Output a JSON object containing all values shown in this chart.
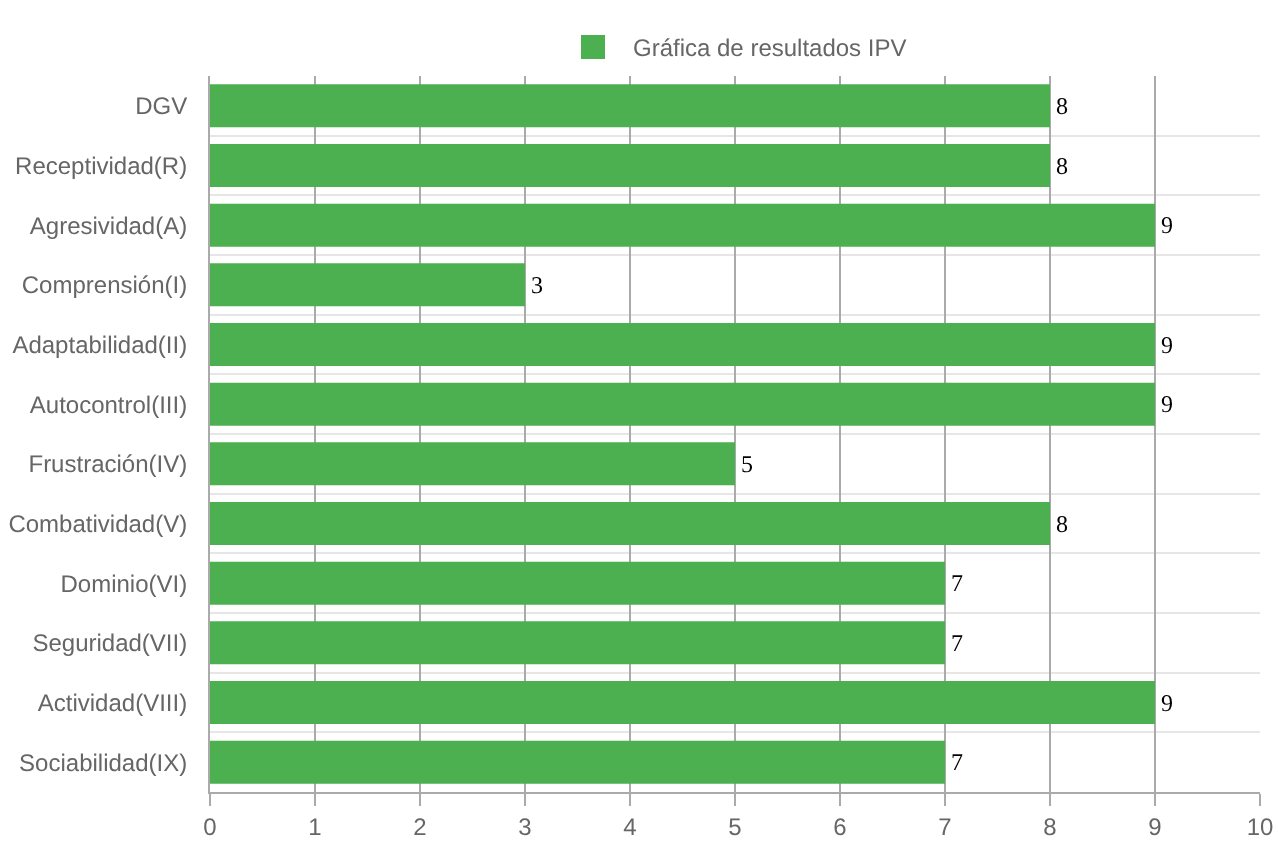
{
  "chart_data": {
    "type": "bar",
    "orientation": "horizontal",
    "categories": [
      "DGV",
      "Receptividad(R)",
      "Agresividad(A)",
      "Comprensión(I)",
      "Adaptabilidad(II)",
      "Autocontrol(III)",
      "Frustración(IV)",
      "Combatividad(V)",
      "Dominio(VI)",
      "Seguridad(VII)",
      "Actividad(VIII)",
      "Sociabilidad(IX)"
    ],
    "series": [
      {
        "name": "Gráfica de resultados IPV",
        "color": "#4caf50",
        "values": [
          8,
          8,
          9,
          3,
          9,
          9,
          5,
          8,
          7,
          7,
          9,
          7
        ]
      }
    ],
    "xlim": [
      0,
      10
    ],
    "xticks": [
      0,
      1,
      2,
      3,
      4,
      5,
      6,
      7,
      8,
      9,
      10
    ],
    "grid": true,
    "legend": "top",
    "data_labels": true
  }
}
